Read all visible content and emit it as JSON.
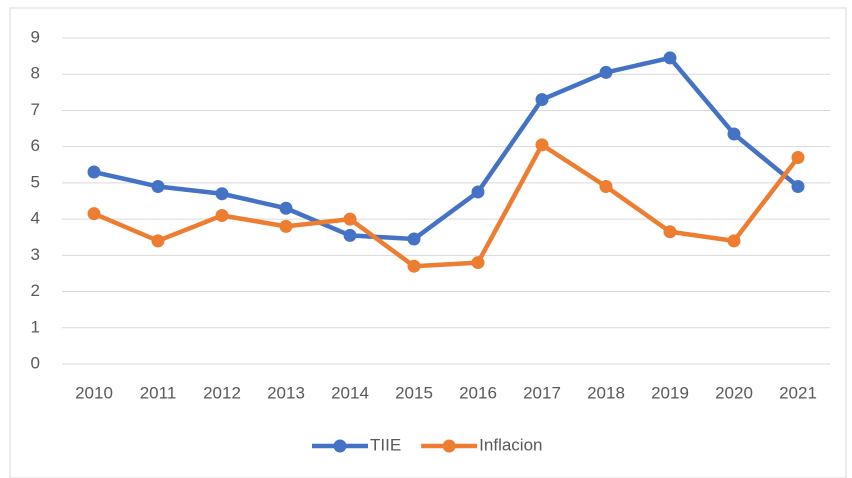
{
  "chart_data": {
    "type": "line",
    "categories": [
      "2010",
      "2011",
      "2012",
      "2013",
      "2014",
      "2015",
      "2016",
      "2017",
      "2018",
      "2019",
      "2020",
      "2021"
    ],
    "series": [
      {
        "name": "TIIE",
        "color": "#4472c4",
        "values": [
          5.3,
          4.9,
          4.7,
          4.3,
          3.55,
          3.45,
          4.75,
          7.3,
          8.05,
          8.45,
          6.35,
          4.9
        ]
      },
      {
        "name": "Inflacion",
        "color": "#ed7d31",
        "values": [
          4.15,
          3.4,
          4.1,
          3.8,
          4.0,
          2.7,
          2.8,
          6.05,
          4.9,
          3.65,
          3.4,
          5.7
        ]
      }
    ],
    "ylim": [
      0,
      9
    ],
    "yticks": [
      0,
      1,
      2,
      3,
      4,
      5,
      6,
      7,
      8,
      9
    ],
    "grid": true,
    "legend": "bottom"
  }
}
